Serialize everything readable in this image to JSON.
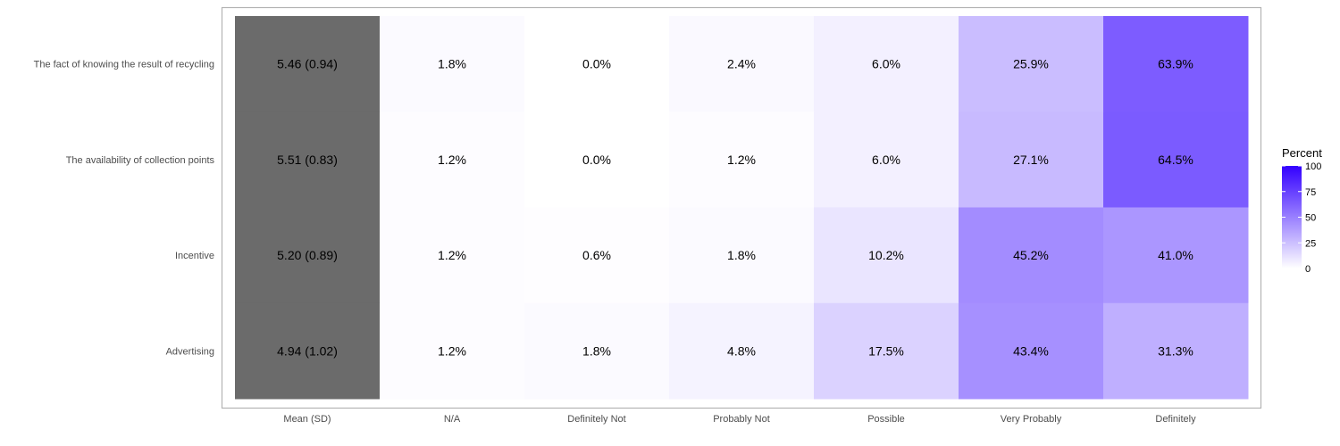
{
  "chart_data": {
    "type": "heatmap",
    "rows": [
      "The fact of knowing the result of recycling",
      "The availability of collection points",
      "Incentive",
      "Advertising"
    ],
    "columns": [
      "Mean (SD)",
      "N/A",
      "Definitely Not",
      "Probably Not",
      "Possible",
      "Very Probably",
      "Definitely"
    ],
    "summary_column": {
      "name": "Mean (SD)",
      "values": [
        "5.46 (0.94)",
        "5.51 (0.83)",
        "5.20 (0.89)",
        "4.94 (1.02)"
      ],
      "color": "#6b6b6b"
    },
    "percent_columns": [
      "N/A",
      "Definitely Not",
      "Probably Not",
      "Possible",
      "Very Probably",
      "Definitely"
    ],
    "values": [
      [
        1.8,
        0.0,
        2.4,
        6.0,
        25.9,
        63.9
      ],
      [
        1.2,
        0.0,
        1.2,
        6.0,
        27.1,
        64.5
      ],
      [
        1.2,
        0.6,
        1.8,
        10.2,
        45.2,
        41.0
      ],
      [
        1.2,
        1.8,
        4.8,
        17.5,
        43.4,
        31.3
      ]
    ],
    "value_suffix": "%",
    "value_decimals": 1,
    "legend": {
      "title": "Percent",
      "range": [
        0,
        100
      ],
      "ticks": [
        0,
        25,
        50,
        75,
        100
      ],
      "placement": "right",
      "low_color": "#ffffff",
      "high_color": "#3300ff"
    },
    "grid": false
  }
}
